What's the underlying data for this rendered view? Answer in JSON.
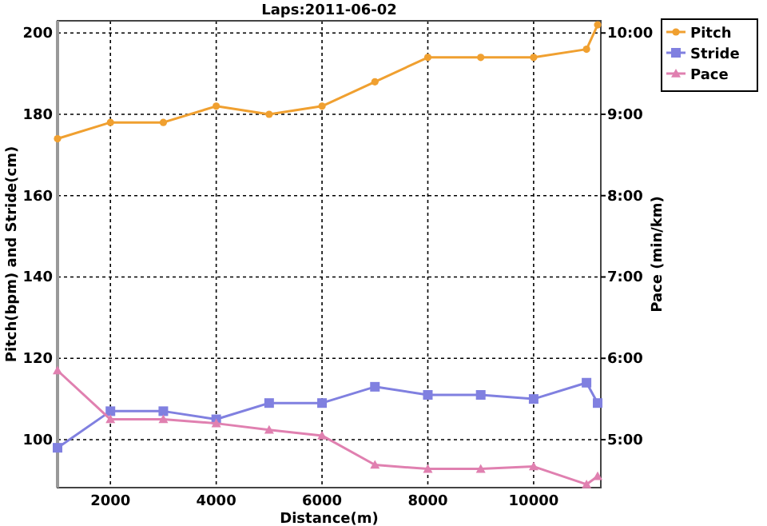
{
  "chart_data": {
    "type": "line",
    "title": "Laps:2011-06-02",
    "xlabel": "Distance(m)",
    "ylabel": "Pitch(bpm) and Stride(cm)",
    "y2label": "Pace (min/km)",
    "xlim": [
      1000,
      11270
    ],
    "xticks": [
      2000,
      4000,
      6000,
      8000,
      10000
    ],
    "ylim": [
      88.2,
      203
    ],
    "yticks": [
      100,
      120,
      140,
      160,
      180,
      200
    ],
    "y2lim": [
      4.41,
      10.15
    ],
    "y2ticks": [
      {
        "value": 5,
        "label": "5:00"
      },
      {
        "value": 6,
        "label": "6:00"
      },
      {
        "value": 7,
        "label": "7:00"
      },
      {
        "value": 8,
        "label": "8:00"
      },
      {
        "value": 9,
        "label": "9:00"
      },
      {
        "value": 10,
        "label": "10:00"
      }
    ],
    "grid": true,
    "legend": "top right",
    "line_style": "solid",
    "series": [
      {
        "name": "Pitch",
        "color": "#f0a030",
        "marker": "circle",
        "x": [
          1000,
          2000,
          3000,
          4000,
          5000,
          6000,
          7000,
          8000,
          9000,
          10000,
          11000,
          11210
        ],
        "values": [
          174,
          178,
          178,
          182,
          180,
          182,
          188,
          194,
          194,
          194,
          196,
          202
        ]
      },
      {
        "name": "Stride",
        "color": "#8080e0",
        "marker": "square",
        "x": [
          1000,
          2000,
          3000,
          4000,
          5000,
          6000,
          7000,
          8000,
          9000,
          10000,
          11000,
          11210
        ],
        "values": [
          98,
          107,
          107,
          105,
          109,
          109,
          113,
          111,
          111,
          110,
          114,
          109
        ]
      },
      {
        "name": "Pace",
        "color": "#e080b0",
        "marker": "triangle",
        "axis": "y2",
        "x": [
          1000,
          2000,
          3000,
          4000,
          5000,
          6000,
          7000,
          8000,
          9000,
          10000,
          11000,
          11210
        ],
        "values": [
          5.85,
          5.25,
          5.25,
          5.2,
          5.12,
          5.05,
          4.69,
          4.64,
          4.64,
          4.67,
          4.45,
          4.55
        ]
      }
    ]
  }
}
